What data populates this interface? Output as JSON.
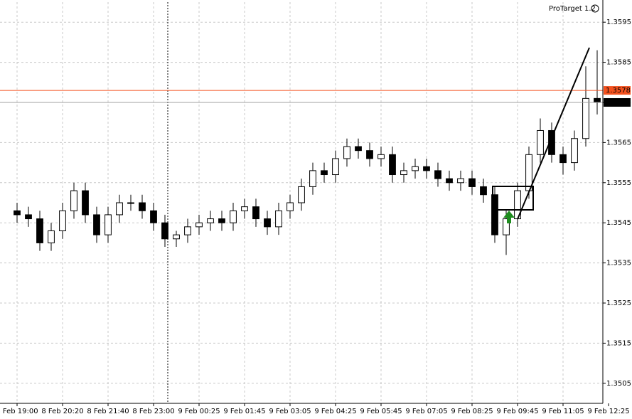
{
  "chart_data": {
    "type": "candlestick",
    "indicator": "ProTarget 1.2",
    "open": [
      1.3548,
      1.3547,
      1.3546,
      1.354,
      1.3543,
      1.3548,
      1.3553,
      1.3547,
      1.3542,
      1.3547,
      1.355,
      1.355,
      1.3548,
      1.3545,
      1.3541,
      1.3542,
      1.3544,
      1.3545,
      1.3546,
      1.3545,
      1.3548,
      1.3549,
      1.3546,
      1.3544,
      1.3548,
      1.355,
      1.3554,
      1.3558,
      1.3557,
      1.3561,
      1.3564,
      1.3563,
      1.3561,
      1.3562,
      1.3557,
      1.3558,
      1.3559,
      1.3558,
      1.3556,
      1.3555,
      1.3556,
      1.3554,
      1.3552,
      1.3542,
      1.3546,
      1.3553,
      1.3562,
      1.3568,
      1.3562,
      1.356,
      1.3566,
      1.3576
    ],
    "high": [
      1.355,
      1.3549,
      1.3548,
      1.3545,
      1.355,
      1.3555,
      1.3555,
      1.3549,
      1.3549,
      1.3552,
      1.3552,
      1.3552,
      1.355,
      1.3547,
      1.3543,
      1.3546,
      1.3547,
      1.3548,
      1.3548,
      1.355,
      1.3551,
      1.3551,
      1.3548,
      1.355,
      1.3552,
      1.3556,
      1.356,
      1.356,
      1.3563,
      1.3566,
      1.3566,
      1.3565,
      1.3564,
      1.3564,
      1.356,
      1.3561,
      1.3561,
      1.356,
      1.3558,
      1.3558,
      1.3558,
      1.3556,
      1.3554,
      1.3548,
      1.3555,
      1.3564,
      1.3571,
      1.357,
      1.3564,
      1.3568,
      1.3584,
      1.3588
    ],
    "low": [
      1.3545,
      1.3544,
      1.3538,
      1.3538,
      1.3541,
      1.3546,
      1.3545,
      1.354,
      1.354,
      1.3545,
      1.3548,
      1.3546,
      1.3543,
      1.3539,
      1.3539,
      1.354,
      1.3542,
      1.3543,
      1.3543,
      1.3543,
      1.3546,
      1.3544,
      1.3542,
      1.3542,
      1.3546,
      1.3548,
      1.3552,
      1.3555,
      1.3555,
      1.3559,
      1.3561,
      1.3559,
      1.3559,
      1.3555,
      1.3555,
      1.3556,
      1.3556,
      1.3554,
      1.3553,
      1.3553,
      1.3552,
      1.355,
      1.354,
      1.3537,
      1.3544,
      1.3551,
      1.356,
      1.356,
      1.3557,
      1.3558,
      1.3564,
      1.3572
    ],
    "close": [
      1.3547,
      1.3546,
      1.354,
      1.3543,
      1.3548,
      1.3553,
      1.3547,
      1.3542,
      1.3547,
      1.355,
      1.355,
      1.3548,
      1.3545,
      1.3541,
      1.3542,
      1.3544,
      1.3545,
      1.3546,
      1.3545,
      1.3548,
      1.3549,
      1.3546,
      1.3544,
      1.3548,
      1.355,
      1.3554,
      1.3558,
      1.3557,
      1.3561,
      1.3564,
      1.3563,
      1.3561,
      1.3562,
      1.3557,
      1.3558,
      1.3559,
      1.3558,
      1.3556,
      1.3555,
      1.3556,
      1.3554,
      1.3552,
      1.3542,
      1.3546,
      1.3553,
      1.3562,
      1.3568,
      1.3562,
      1.356,
      1.3566,
      1.3576,
      1.3575
    ],
    "up_color": "#ffffff",
    "down_color": "#000000",
    "outline_color": "#000000",
    "xlim": [
      -1.5,
      51.5
    ],
    "xticks": [
      {
        "value": 0,
        "label": "8 Feb 19:00"
      },
      {
        "value": 4,
        "label": "8 Feb 20:20"
      },
      {
        "value": 8,
        "label": "8 Feb 21:40"
      },
      {
        "value": 12,
        "label": "8 Feb 23:00"
      },
      {
        "value": 16,
        "label": "9 Feb 00:25"
      },
      {
        "value": 20,
        "label": "9 Feb 01:45"
      },
      {
        "value": 24,
        "label": "9 Feb 03:05"
      },
      {
        "value": 28,
        "label": "9 Feb 04:25"
      },
      {
        "value": 32,
        "label": "9 Feb 05:45"
      },
      {
        "value": 36,
        "label": "9 Feb 07:05"
      },
      {
        "value": 40,
        "label": "9 Feb 08:25"
      },
      {
        "value": 44,
        "label": "9 Feb 09:45"
      },
      {
        "value": 48,
        "label": "9 Feb 11:05"
      },
      {
        "value": 52,
        "label": "9 Feb 12:25"
      }
    ],
    "ylim": [
      1.35,
      1.36
    ],
    "yticks": [
      1.3505,
      1.3515,
      1.3525,
      1.3535,
      1.3545,
      1.3555,
      1.3565,
      1.3575,
      1.3585,
      1.3595
    ],
    "grid": true,
    "hlines": [
      {
        "value": 1.3578,
        "color": "#f4511e"
      },
      {
        "value": 1.3575,
        "color": "#a0a0a0"
      }
    ],
    "vline": 13.25
  }
}
